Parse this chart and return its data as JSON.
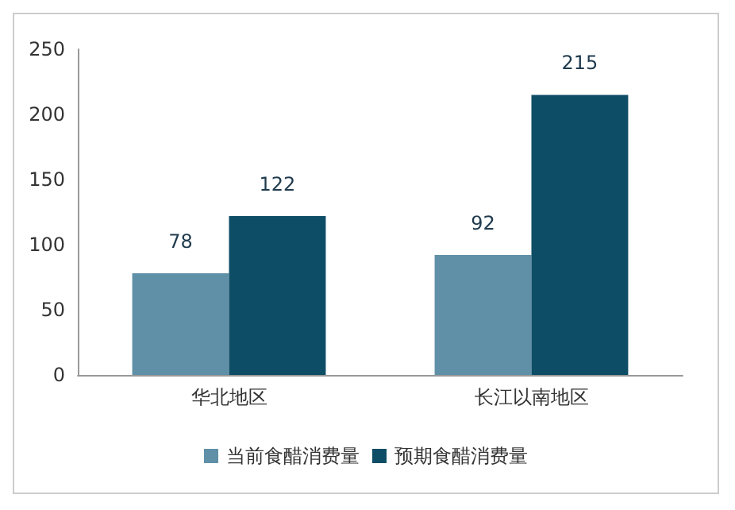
{
  "chart_data": {
    "type": "bar",
    "categories": [
      "华北地区",
      "长江以南地区"
    ],
    "series": [
      {
        "name": "当前食醋消费量",
        "color": "#5f90a8",
        "values": [
          78,
          92
        ]
      },
      {
        "name": "预期食醋消费量",
        "color": "#0e4d66",
        "values": [
          122,
          215
        ]
      }
    ],
    "ylim": [
      0,
      250
    ],
    "yticks": [
      0,
      50,
      100,
      150,
      200,
      250
    ],
    "data_labels": true,
    "grid": false,
    "legend": "bottom"
  }
}
